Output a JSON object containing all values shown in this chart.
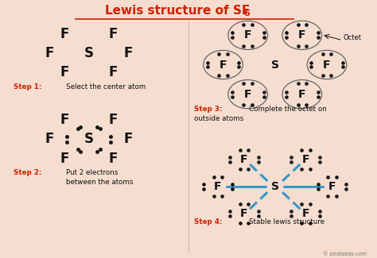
{
  "bg_color": "#f5ddd0",
  "title_color": "#cc2200",
  "text_color": "#111111",
  "step_color": "#cc2200",
  "bond_color": "#3399cc",
  "octet_label": "Octet",
  "watermark": "© pediabay.com",
  "step1_bold": "Step 1:",
  "step1_rest": " Select the center atom",
  "step2_bold": "Step 2:",
  "step2_rest": " Put 2 electrons\nbetween the atoms",
  "step3_bold": "Step 3:",
  "step3_rest": " Complete the octet on\noutside atoms",
  "step4_bold": "Step 4:",
  "step4_rest": " Stable lewis structure"
}
